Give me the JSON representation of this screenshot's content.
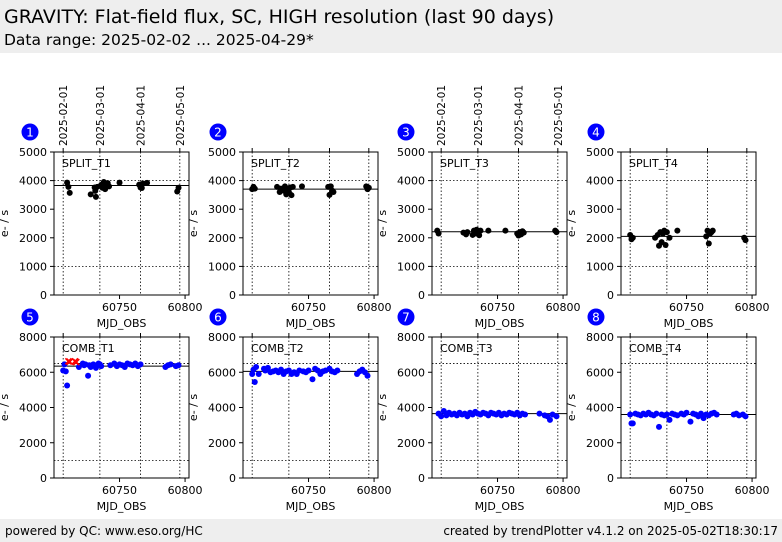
{
  "header": {
    "title": "GRAVITY: Flat-field flux, SC, HIGH resolution (last 90 days)",
    "subtitle": "Data range: 2025-02-02 ... 2025-04-29*"
  },
  "footer": {
    "left": "powered by QC: www.eso.org/HC",
    "right": "created by trendPlotter v4.1.2 on 2025-05-02T18:30:17"
  },
  "colors": {
    "top_points": "#000000",
    "bottom_points": "#0000ff",
    "outlier": "#ff0000",
    "badge": "#0000ff"
  },
  "date_ticks": [
    {
      "label": "2025-02-01",
      "mjd": 60707
    },
    {
      "label": "2025-03-01",
      "mjd": 60735
    },
    {
      "label": "2025-04-01",
      "mjd": 60766
    },
    {
      "label": "2025-05-01",
      "mjd": 60796
    }
  ],
  "chart_data": [
    {
      "type": "scatter",
      "number": "1",
      "label": "SPLIT_T1",
      "xlabel": "MJD_OBS",
      "ylabel": "e- / s",
      "xlim": [
        60700,
        60803
      ],
      "ylim": [
        0,
        5000
      ],
      "yticks": [
        0,
        1000,
        2000,
        3000,
        4000,
        5000
      ],
      "xticks": [
        60750,
        60800
      ],
      "hlines": [
        1000,
        4000
      ],
      "ref": 3830,
      "color": "#000000",
      "points": [
        [
          60710,
          3930
        ],
        [
          60711,
          3780
        ],
        [
          60712,
          3570
        ],
        [
          60728,
          3520
        ],
        [
          60731,
          3760
        ],
        [
          60731.5,
          3640
        ],
        [
          60732,
          3430
        ],
        [
          60733,
          3780
        ],
        [
          60736,
          3850
        ],
        [
          60737,
          3750
        ],
        [
          60738,
          3950
        ],
        [
          60739,
          3700
        ],
        [
          60740,
          3870
        ],
        [
          60741,
          3910
        ],
        [
          60742,
          3800
        ],
        [
          60750,
          3930
        ],
        [
          60765,
          3860
        ],
        [
          60766,
          3760
        ],
        [
          60767,
          3740
        ],
        [
          60768,
          3900
        ],
        [
          60771,
          3920
        ],
        [
          60794,
          3620
        ],
        [
          60795,
          3750
        ]
      ],
      "outliers": []
    },
    {
      "type": "scatter",
      "number": "2",
      "label": "SPLIT_T2",
      "xlabel": "MJD_OBS",
      "ylabel": "e- / s",
      "xlim": [
        60700,
        60803
      ],
      "ylim": [
        0,
        5000
      ],
      "yticks": [
        0,
        1000,
        2000,
        3000,
        4000,
        5000
      ],
      "xticks": [
        60750,
        60800
      ],
      "hlines": [
        1000,
        4000
      ],
      "ref": 3700,
      "color": "#000000",
      "points": [
        [
          60707,
          3700
        ],
        [
          60708,
          3780
        ],
        [
          60709,
          3720
        ],
        [
          60726,
          3780
        ],
        [
          60728,
          3600
        ],
        [
          60729,
          3720
        ],
        [
          60731,
          3650
        ],
        [
          60732,
          3800
        ],
        [
          60733,
          3520
        ],
        [
          60734,
          3700
        ],
        [
          60735,
          3600
        ],
        [
          60736,
          3760
        ],
        [
          60737,
          3490
        ],
        [
          60738,
          3780
        ],
        [
          60745,
          3800
        ],
        [
          60765,
          3780
        ],
        [
          60766,
          3500
        ],
        [
          60767,
          3800
        ],
        [
          60768,
          3650
        ],
        [
          60769,
          3600
        ],
        [
          60794,
          3800
        ],
        [
          60795,
          3700
        ],
        [
          60796,
          3750
        ]
      ],
      "outliers": []
    },
    {
      "type": "scatter",
      "number": "3",
      "label": "SPLIT_T3",
      "xlabel": "MJD_OBS",
      "ylabel": "e- / s",
      "xlim": [
        60700,
        60803
      ],
      "ylim": [
        0,
        5000
      ],
      "yticks": [
        0,
        1000,
        2000,
        3000,
        4000,
        5000
      ],
      "xticks": [
        60750,
        60800
      ],
      "hlines": [
        1000,
        4000
      ],
      "ref": 2210,
      "color": "#000000",
      "points": [
        [
          60704,
          2250
        ],
        [
          60705,
          2150
        ],
        [
          60724,
          2180
        ],
        [
          60726,
          2120
        ],
        [
          60727,
          2200
        ],
        [
          60731,
          2100
        ],
        [
          60732,
          2250
        ],
        [
          60733,
          2150
        ],
        [
          60734,
          2280
        ],
        [
          60735,
          2200
        ],
        [
          60736,
          2090
        ],
        [
          60737,
          2250
        ],
        [
          60743,
          2250
        ],
        [
          60756,
          2250
        ],
        [
          60765,
          2150
        ],
        [
          60766,
          2080
        ],
        [
          60767,
          2200
        ],
        [
          60768,
          2120
        ],
        [
          60769,
          2230
        ],
        [
          60770,
          2180
        ],
        [
          60794,
          2250
        ],
        [
          60795,
          2200
        ]
      ],
      "outliers": []
    },
    {
      "type": "scatter",
      "number": "4",
      "label": "SPLIT_T4",
      "xlabel": "MJD_OBS",
      "ylabel": "e- / s",
      "xlim": [
        60700,
        60803
      ],
      "ylim": [
        0,
        5000
      ],
      "yticks": [
        0,
        1000,
        2000,
        3000,
        4000,
        5000
      ],
      "xticks": [
        60750,
        60800
      ],
      "hlines": [
        1000,
        4000
      ],
      "ref": 2050,
      "color": "#000000",
      "points": [
        [
          60707,
          2100
        ],
        [
          60708,
          1950
        ],
        [
          60709,
          2000
        ],
        [
          60726,
          2000
        ],
        [
          60728,
          2100
        ],
        [
          60729,
          1720
        ],
        [
          60730,
          2200
        ],
        [
          60731,
          1850
        ],
        [
          60732,
          2150
        ],
        [
          60733,
          2250
        ],
        [
          60734,
          1750
        ],
        [
          60735,
          2200
        ],
        [
          60737,
          2000
        ],
        [
          60743,
          2250
        ],
        [
          60765,
          2050
        ],
        [
          60766,
          2250
        ],
        [
          60767,
          1800
        ],
        [
          60768,
          2150
        ],
        [
          60769,
          2200
        ],
        [
          60770,
          2250
        ],
        [
          60794,
          2000
        ],
        [
          60795,
          1920
        ]
      ],
      "outliers": []
    },
    {
      "type": "scatter",
      "number": "5",
      "label": "COMB_T1",
      "xlabel": "MJD_OBS",
      "ylabel": "e- / s",
      "xlim": [
        60700,
        60803
      ],
      "ylim": [
        0,
        8000
      ],
      "yticks": [
        0,
        2000,
        4000,
        6000,
        8000
      ],
      "xticks": [
        60750,
        60800
      ],
      "hlines": [
        1000,
        6500
      ],
      "ref": 6350,
      "color": "#0000ff",
      "points": [
        [
          60707,
          6100
        ],
        [
          60708,
          6450
        ],
        [
          60709,
          6050
        ],
        [
          60710,
          5250
        ],
        [
          60719,
          6300
        ],
        [
          60722,
          6500
        ],
        [
          60723,
          6400
        ],
        [
          60724,
          6450
        ],
        [
          60726,
          5800
        ],
        [
          60727,
          6400
        ],
        [
          60728,
          6300
        ],
        [
          60730,
          6450
        ],
        [
          60732,
          6250
        ],
        [
          60734,
          6500
        ],
        [
          60735,
          6450
        ],
        [
          60736,
          6350
        ],
        [
          60743,
          6400
        ],
        [
          60746,
          6500
        ],
        [
          60748,
          6350
        ],
        [
          60750,
          6450
        ],
        [
          60752,
          6400
        ],
        [
          60754,
          6300
        ],
        [
          60756,
          6500
        ],
        [
          60758,
          6450
        ],
        [
          60760,
          6400
        ],
        [
          60762,
          6500
        ],
        [
          60764,
          6350
        ],
        [
          60766,
          6450
        ],
        [
          60785,
          6300
        ],
        [
          60787,
          6400
        ],
        [
          60789,
          6450
        ],
        [
          60793,
          6350
        ],
        [
          60795,
          6400
        ]
      ],
      "outliers": [
        [
          60711,
          6620
        ],
        [
          60712,
          6600
        ],
        [
          60716,
          6620
        ],
        [
          60717,
          6580
        ]
      ]
    },
    {
      "type": "scatter",
      "number": "6",
      "label": "COMB_T2",
      "xlabel": "MJD_OBS",
      "ylabel": "e- / s",
      "xlim": [
        60700,
        60803
      ],
      "ylim": [
        0,
        8000
      ],
      "yticks": [
        0,
        2000,
        4000,
        6000,
        8000
      ],
      "xticks": [
        60750,
        60800
      ],
      "hlines": [
        1000,
        6500
      ],
      "ref": 6050,
      "color": "#0000ff",
      "points": [
        [
          60707,
          5900
        ],
        [
          60708,
          6150
        ],
        [
          60709,
          5450
        ],
        [
          60710,
          6300
        ],
        [
          60712,
          5900
        ],
        [
          60716,
          6200
        ],
        [
          60717,
          6100
        ],
        [
          60719,
          6250
        ],
        [
          60721,
          6000
        ],
        [
          60723,
          6050
        ],
        [
          60725,
          6100
        ],
        [
          60727,
          6000
        ],
        [
          60729,
          6150
        ],
        [
          60731,
          5900
        ],
        [
          60733,
          6050
        ],
        [
          60735,
          6100
        ],
        [
          60737,
          5900
        ],
        [
          60739,
          6000
        ],
        [
          60741,
          5900
        ],
        [
          60743,
          6100
        ],
        [
          60746,
          6050
        ],
        [
          60748,
          6000
        ],
        [
          60750,
          6100
        ],
        [
          60753,
          5600
        ],
        [
          60755,
          6200
        ],
        [
          60757,
          6100
        ],
        [
          60759,
          5900
        ],
        [
          60761,
          6050
        ],
        [
          60763,
          6100
        ],
        [
          60766,
          6200
        ],
        [
          60768,
          6050
        ],
        [
          60770,
          6000
        ],
        [
          60772,
          6100
        ],
        [
          60787,
          5900
        ],
        [
          60789,
          6050
        ],
        [
          60791,
          6150
        ],
        [
          60793,
          6000
        ],
        [
          60795,
          5800
        ]
      ],
      "outliers": []
    },
    {
      "type": "scatter",
      "number": "7",
      "label": "COMB_T3",
      "xlabel": "MJD_OBS",
      "ylabel": "e- / s",
      "xlim": [
        60700,
        60803
      ],
      "ylim": [
        0,
        8000
      ],
      "yticks": [
        0,
        2000,
        4000,
        6000,
        8000
      ],
      "xticks": [
        60750,
        60800
      ],
      "hlines": [
        1000,
        6500
      ],
      "ref": 3650,
      "color": "#0000ff",
      "points": [
        [
          60705,
          3650
        ],
        [
          60707,
          3500
        ],
        [
          60709,
          3800
        ],
        [
          60711,
          3550
        ],
        [
          60713,
          3700
        ],
        [
          60715,
          3600
        ],
        [
          60717,
          3650
        ],
        [
          60719,
          3550
        ],
        [
          60721,
          3700
        ],
        [
          60723,
          3600
        ],
        [
          60725,
          3650
        ],
        [
          60727,
          3500
        ],
        [
          60729,
          3700
        ],
        [
          60731,
          3600
        ],
        [
          60733,
          3750
        ],
        [
          60735,
          3650
        ],
        [
          60737,
          3600
        ],
        [
          60739,
          3700
        ],
        [
          60741,
          3650
        ],
        [
          60743,
          3550
        ],
        [
          60745,
          3700
        ],
        [
          60747,
          3650
        ],
        [
          60749,
          3600
        ],
        [
          60751,
          3700
        ],
        [
          60753,
          3550
        ],
        [
          60755,
          3650
        ],
        [
          60757,
          3600
        ],
        [
          60759,
          3700
        ],
        [
          60761,
          3650
        ],
        [
          60763,
          3600
        ],
        [
          60765,
          3700
        ],
        [
          60767,
          3550
        ],
        [
          60769,
          3650
        ],
        [
          60771,
          3600
        ],
        [
          60782,
          3650
        ],
        [
          60786,
          3550
        ],
        [
          60788,
          3500
        ],
        [
          60790,
          3300
        ],
        [
          60792,
          3600
        ],
        [
          60795,
          3500
        ]
      ],
      "outliers": []
    },
    {
      "type": "scatter",
      "number": "8",
      "label": "COMB_T4",
      "xlabel": "MJD_OBS",
      "ylabel": "e- / s",
      "xlim": [
        60700,
        60803
      ],
      "ylim": [
        0,
        8000
      ],
      "yticks": [
        0,
        2000,
        4000,
        6000,
        8000
      ],
      "xticks": [
        60750,
        60800
      ],
      "hlines": [
        1000,
        6500
      ],
      "ref": 3600,
      "color": "#0000ff",
      "points": [
        [
          60707,
          3600
        ],
        [
          60708,
          3100
        ],
        [
          60709,
          3100
        ],
        [
          60711,
          3650
        ],
        [
          60713,
          3600
        ],
        [
          60715,
          3550
        ],
        [
          60717,
          3650
        ],
        [
          60719,
          3600
        ],
        [
          60721,
          3700
        ],
        [
          60723,
          3600
        ],
        [
          60725,
          3550
        ],
        [
          60727,
          3650
        ],
        [
          60729,
          2900
        ],
        [
          60731,
          3600
        ],
        [
          60733,
          3550
        ],
        [
          60735,
          3600
        ],
        [
          60737,
          3300
        ],
        [
          60739,
          3650
        ],
        [
          60741,
          3600
        ],
        [
          60743,
          3550
        ],
        [
          60746,
          3650
        ],
        [
          60748,
          3600
        ],
        [
          60750,
          3700
        ],
        [
          60753,
          3200
        ],
        [
          60755,
          3650
        ],
        [
          60757,
          3600
        ],
        [
          60759,
          3500
        ],
        [
          60761,
          3650
        ],
        [
          60763,
          3400
        ],
        [
          60765,
          3600
        ],
        [
          60767,
          3550
        ],
        [
          60769,
          3650
        ],
        [
          60771,
          3700
        ],
        [
          60773,
          3600
        ],
        [
          60786,
          3600
        ],
        [
          60788,
          3650
        ],
        [
          60790,
          3550
        ],
        [
          60793,
          3600
        ],
        [
          60795,
          3500
        ]
      ],
      "outliers": []
    }
  ]
}
